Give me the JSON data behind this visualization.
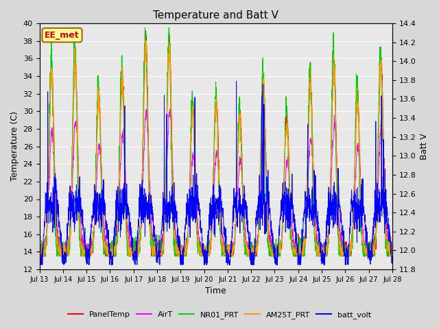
{
  "title": "Temperature and Batt V",
  "xlabel": "Time",
  "ylabel_left": "Temperature (C)",
  "ylabel_right": "Batt V",
  "annotation": "EE_met",
  "ylim_left": [
    12,
    40
  ],
  "ylim_right": [
    11.8,
    14.4
  ],
  "xtick_labels": [
    "Jul 13",
    "Jul 14",
    "Jul 15",
    "Jul 16",
    "Jul 17",
    "Jul 18",
    "Jul 19",
    "Jul 20",
    "Jul 21",
    "Jul 22",
    "Jul 23",
    "Jul 24",
    "Jul 25",
    "Jul 26",
    "Jul 27",
    "Jul 28"
  ],
  "colors": {
    "PanelTemp": "#ff0000",
    "AirT": "#ff00ff",
    "NR01_PRT": "#00cc00",
    "AM25T_PRT": "#ff9900",
    "batt_volt": "#0000ff"
  },
  "legend_entries": [
    "PanelTemp",
    "AirT",
    "NR01_PRT",
    "AM25T_PRT",
    "batt_volt"
  ],
  "fig_bg_color": "#d8d8d8",
  "plot_bg_color": "#e8e8e8",
  "grid_color": "#ffffff",
  "annotation_bg": "#ffff99",
  "annotation_border": "#aa6600",
  "annotation_text_color": "#cc0000",
  "n_days": 15,
  "pts_per_day": 144
}
